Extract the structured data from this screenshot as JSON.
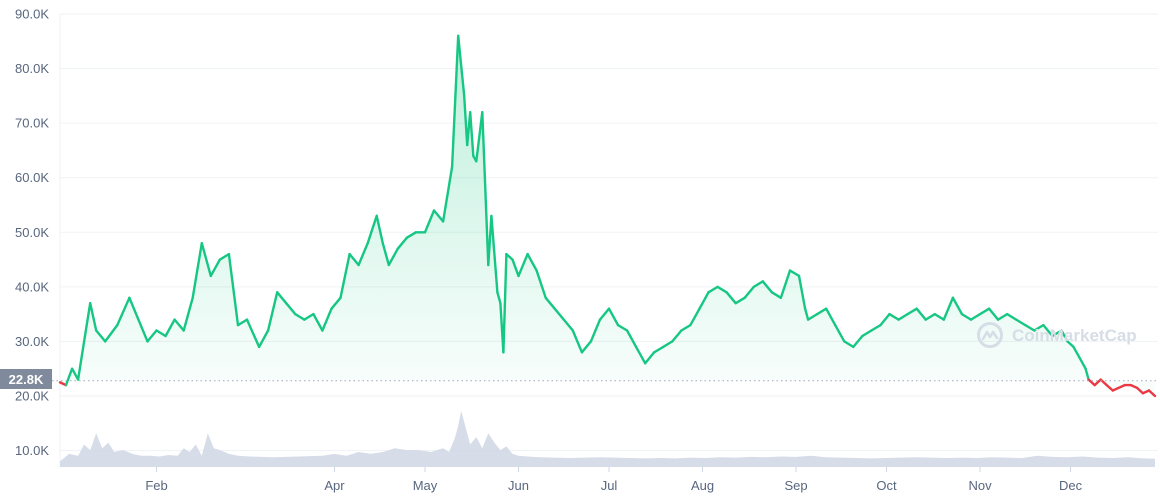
{
  "watermark": {
    "text": "CoinMarketCap",
    "icon": "coinmarketcap-logo-icon"
  },
  "current_price_label": "22.8K",
  "colors": {
    "up": "#16c784",
    "down": "#ea3943",
    "volume": "#cfd6e4",
    "reference_line": "#a1a7bb",
    "label_bg": "#808a9d"
  },
  "chart_data": {
    "type": "line",
    "title": "",
    "xlabel": "",
    "ylabel": "",
    "ylim": [
      2500,
      92000
    ],
    "y_ticks": [
      10000,
      20000,
      30000,
      40000,
      50000,
      60000,
      70000,
      80000,
      90000
    ],
    "y_tick_labels": [
      "10.0K",
      "20.0K",
      "30.0K",
      "40.0K",
      "50.0K",
      "60.0K",
      "70.0K",
      "80.0K",
      "90.0K"
    ],
    "x_range": [
      1,
      365
    ],
    "x_ticks": [
      33,
      92,
      122,
      153,
      183,
      214,
      245,
      275,
      306,
      336
    ],
    "x_tick_labels": [
      "Feb",
      "Apr",
      "May",
      "Jun",
      "Jul",
      "Aug",
      "Sep",
      "Oct",
      "Nov",
      "Dec"
    ],
    "reference_value": 22800,
    "grid": true,
    "series": [
      {
        "role": "price",
        "x": [
          1,
          3,
          5,
          7,
          9,
          11,
          13,
          16,
          20,
          24,
          27,
          30,
          33,
          36,
          39,
          42,
          45,
          48,
          51,
          54,
          57,
          60,
          63,
          67,
          70,
          73,
          76,
          79,
          82,
          85,
          88,
          91,
          94,
          97,
          100,
          103,
          106,
          108,
          110,
          113,
          116,
          119,
          122,
          125,
          128,
          131,
          133,
          135,
          136,
          137,
          138,
          139,
          141,
          142,
          143,
          144,
          146,
          147,
          148,
          149,
          151,
          153,
          156,
          159,
          162,
          165,
          168,
          171,
          174,
          177,
          180,
          183,
          186,
          189,
          192,
          195,
          198,
          201,
          204,
          207,
          210,
          213,
          216,
          219,
          222,
          225,
          228,
          231,
          234,
          237,
          240,
          243,
          246,
          248,
          249,
          252,
          255,
          258,
          261,
          264,
          267,
          270,
          273,
          276,
          279,
          282,
          285,
          288,
          291,
          294,
          297,
          300,
          303,
          306,
          309,
          312,
          315,
          318,
          321,
          324,
          327,
          330,
          333,
          335,
          337,
          339,
          341,
          342,
          344,
          346,
          348,
          350,
          352,
          354,
          356,
          358,
          360,
          362,
          364
        ],
        "y": [
          22500,
          22000,
          25000,
          23000,
          30000,
          37000,
          32000,
          30000,
          33000,
          38000,
          34000,
          30000,
          32000,
          31000,
          34000,
          32000,
          38000,
          48000,
          42000,
          45000,
          46000,
          33000,
          34000,
          29000,
          32000,
          39000,
          37000,
          35000,
          34000,
          35000,
          32000,
          36000,
          38000,
          46000,
          44000,
          48000,
          53000,
          48000,
          44000,
          47000,
          49000,
          50000,
          50000,
          54000,
          52000,
          62000,
          86000,
          75000,
          66000,
          72000,
          64000,
          63000,
          72000,
          58000,
          44000,
          53000,
          39000,
          37000,
          28000,
          46000,
          45000,
          42000,
          46000,
          43000,
          38000,
          36000,
          34000,
          32000,
          28000,
          30000,
          34000,
          36000,
          33000,
          32000,
          29000,
          26000,
          28000,
          29000,
          30000,
          32000,
          33000,
          36000,
          39000,
          40000,
          39000,
          37000,
          38000,
          40000,
          41000,
          39000,
          38000,
          43000,
          42000,
          36000,
          34000,
          35000,
          36000,
          33000,
          30000,
          29000,
          31000,
          32000,
          33000,
          35000,
          34000,
          35000,
          36000,
          34000,
          35000,
          34000,
          38000,
          35000,
          34000,
          35000,
          36000,
          34000,
          35000,
          34000,
          33000,
          32000,
          33000,
          31000,
          32000,
          30000,
          29000,
          27000,
          25000,
          23000,
          22000,
          23000,
          22000,
          21000,
          21500,
          22000,
          22000,
          21500,
          20500,
          21000,
          20000
        ]
      },
      {
        "role": "volume",
        "x": [
          1,
          4,
          7,
          9,
          11,
          13,
          15,
          17,
          19,
          22,
          25,
          28,
          31,
          34,
          37,
          40,
          42,
          44,
          46,
          48,
          50,
          52,
          54,
          57,
          60,
          64,
          68,
          72,
          76,
          80,
          84,
          88,
          92,
          96,
          100,
          104,
          108,
          112,
          116,
          120,
          124,
          128,
          130,
          132,
          133,
          134,
          135,
          137,
          139,
          141,
          143,
          145,
          147,
          149,
          151,
          153,
          156,
          160,
          165,
          170,
          175,
          180,
          185,
          190,
          195,
          200,
          205,
          210,
          215,
          220,
          225,
          230,
          235,
          240,
          245,
          250,
          255,
          260,
          265,
          270,
          275,
          280,
          285,
          290,
          295,
          300,
          305,
          310,
          315,
          320,
          325,
          330,
          335,
          340,
          345,
          350,
          355,
          360,
          364
        ],
        "y": [
          1500,
          3500,
          3000,
          6000,
          4500,
          9000,
          5000,
          6500,
          4000,
          4500,
          3500,
          3000,
          3000,
          2800,
          3200,
          3000,
          5000,
          4000,
          6000,
          3000,
          9000,
          5000,
          4500,
          3500,
          3000,
          2800,
          2700,
          2600,
          2700,
          2800,
          2900,
          3000,
          3500,
          3000,
          4000,
          3500,
          4000,
          5000,
          4500,
          4500,
          4000,
          5000,
          4000,
          8000,
          11000,
          15000,
          12000,
          6000,
          8000,
          5000,
          9000,
          6500,
          4500,
          5500,
          3500,
          3000,
          2800,
          2600,
          2500,
          2400,
          2500,
          2600,
          2500,
          2400,
          2300,
          2400,
          2300,
          2500,
          2400,
          2600,
          2500,
          2700,
          2600,
          2800,
          2700,
          3000,
          2600,
          2500,
          2400,
          2300,
          2400,
          2500,
          2600,
          2500,
          2400,
          2500,
          2400,
          2600,
          2500,
          2400,
          3000,
          2700,
          2600,
          2800,
          2500,
          2400,
          2600,
          2300,
          2200
        ]
      }
    ]
  }
}
